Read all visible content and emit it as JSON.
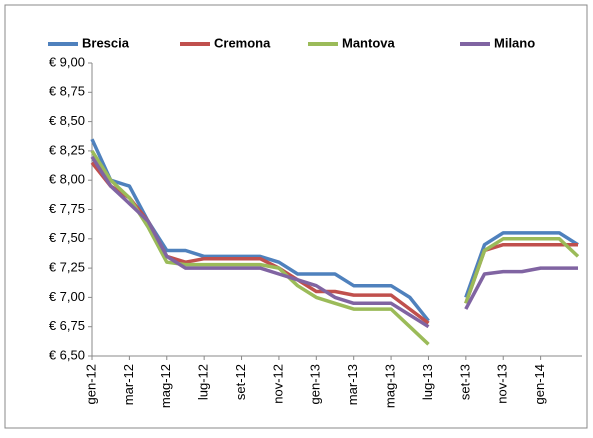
{
  "chart_data": {
    "type": "line",
    "categories": [
      "gen-12",
      null,
      "mar-12",
      null,
      "mag-12",
      null,
      "lug-12",
      null,
      "set-12",
      null,
      "nov-12",
      null,
      "gen-13",
      null,
      "mar-13",
      null,
      "mag-13",
      null,
      "lug-13",
      null,
      "set-13",
      null,
      "nov-13",
      null,
      "gen-14",
      null,
      null
    ],
    "series": [
      {
        "name": "Brescia",
        "color": "#4f81bd",
        "values": [
          8.35,
          8.0,
          7.95,
          7.65,
          7.4,
          7.4,
          7.35,
          7.35,
          7.35,
          7.35,
          7.3,
          7.2,
          7.2,
          7.2,
          7.1,
          7.1,
          7.1,
          7.0,
          6.8,
          null,
          7.0,
          7.45,
          7.55,
          7.55,
          7.55,
          7.55,
          7.45
        ]
      },
      {
        "name": "Cremona",
        "color": "#c0504d",
        "values": [
          8.15,
          7.95,
          7.85,
          7.65,
          7.35,
          7.3,
          7.33,
          7.33,
          7.33,
          7.33,
          7.25,
          7.15,
          7.05,
          7.05,
          7.02,
          7.02,
          7.02,
          6.9,
          6.78,
          null,
          6.95,
          7.4,
          7.45,
          7.45,
          7.45,
          7.45,
          7.45
        ]
      },
      {
        "name": "Mantova",
        "color": "#9bbb59",
        "values": [
          8.25,
          8.0,
          7.85,
          7.6,
          7.3,
          7.28,
          7.28,
          7.28,
          7.28,
          7.28,
          7.25,
          7.1,
          7.0,
          6.95,
          6.9,
          6.9,
          6.9,
          6.75,
          6.6,
          null,
          6.95,
          7.4,
          7.5,
          7.5,
          7.5,
          7.5,
          7.35
        ]
      },
      {
        "name": "Milano",
        "color": "#8064a2",
        "values": [
          8.2,
          7.95,
          7.8,
          7.65,
          7.35,
          7.25,
          7.25,
          7.25,
          7.25,
          7.25,
          7.2,
          7.15,
          7.1,
          7.0,
          6.95,
          6.95,
          6.95,
          6.85,
          6.75,
          null,
          6.9,
          7.2,
          7.22,
          7.22,
          7.25,
          7.25,
          7.25
        ]
      }
    ],
    "ylim": [
      6.5,
      9.0
    ],
    "yticks": [
      {
        "value": 6.5,
        "label": "€ 6,50"
      },
      {
        "value": 6.75,
        "label": "€ 6,75"
      },
      {
        "value": 7.0,
        "label": "€ 7,00"
      },
      {
        "value": 7.25,
        "label": "€ 7,25"
      },
      {
        "value": 7.5,
        "label": "€ 7,50"
      },
      {
        "value": 7.75,
        "label": "€ 7,75"
      },
      {
        "value": 8.0,
        "label": "€ 8,00"
      },
      {
        "value": 8.25,
        "label": "€ 8,25"
      },
      {
        "value": 8.5,
        "label": "€ 8,50"
      },
      {
        "value": 8.75,
        "label": "€ 8,75"
      },
      {
        "value": 9.0,
        "label": "€ 9,00"
      }
    ],
    "grid": false,
    "legend": "top"
  }
}
